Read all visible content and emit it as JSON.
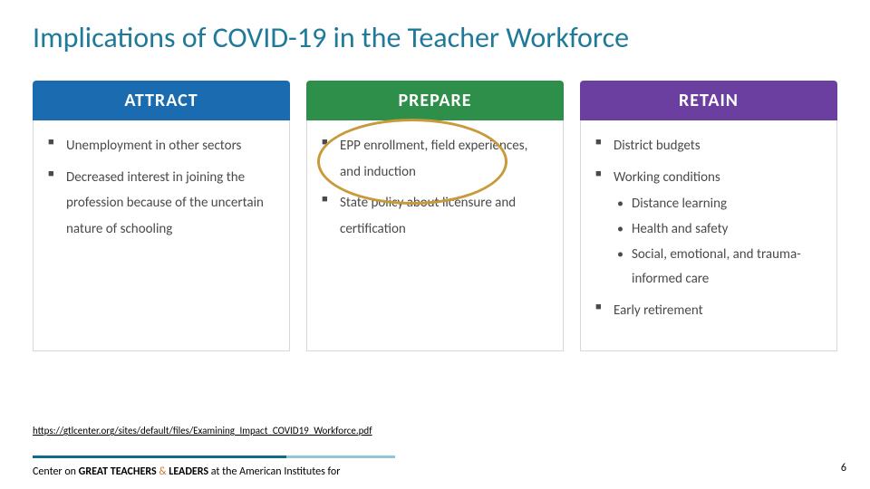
{
  "title": {
    "text": "Implications of COVID-19 in the Teacher Workforce",
    "color": "#1f7a99"
  },
  "panels": [
    {
      "label": "ATTRACT",
      "header_bg": "#1a6bb0",
      "body_color": "#4a4a4a",
      "items": [
        {
          "text": "Unemployment in other sectors"
        },
        {
          "text": "Decreased interest in joining the profession because of the uncertain nature of schooling"
        }
      ]
    },
    {
      "label": "PREPARE",
      "header_bg": "#2e8f4a",
      "body_color": "#4a4a4a",
      "circle": true,
      "items": [
        {
          "text": "EPP enrollment, field experiences, and induction"
        },
        {
          "text": "State policy about licensure and certification"
        }
      ]
    },
    {
      "label": "RETAIN",
      "header_bg": "#6b3fa0",
      "body_color": "#4a4a4a",
      "items": [
        {
          "text": "District budgets"
        },
        {
          "text": "Working conditions",
          "sub": [
            {
              "text": "Distance learning"
            },
            {
              "text": "Health and safety"
            },
            {
              "text": "Social, emotional, and trauma-informed care"
            }
          ]
        },
        {
          "text": "Early retirement"
        }
      ]
    }
  ],
  "source_url": "https://gtlcenter.org/sites/default/files/Examining_Impact_COVID19_Workforce.pdf",
  "footer": {
    "pre": "Center on ",
    "bold1": "GREAT TEACHERS",
    "amp": " & ",
    "bold2": "LEADERS",
    "post": " at the American Institutes for",
    "amp_color": "#c97a2e"
  },
  "page_number": "6"
}
